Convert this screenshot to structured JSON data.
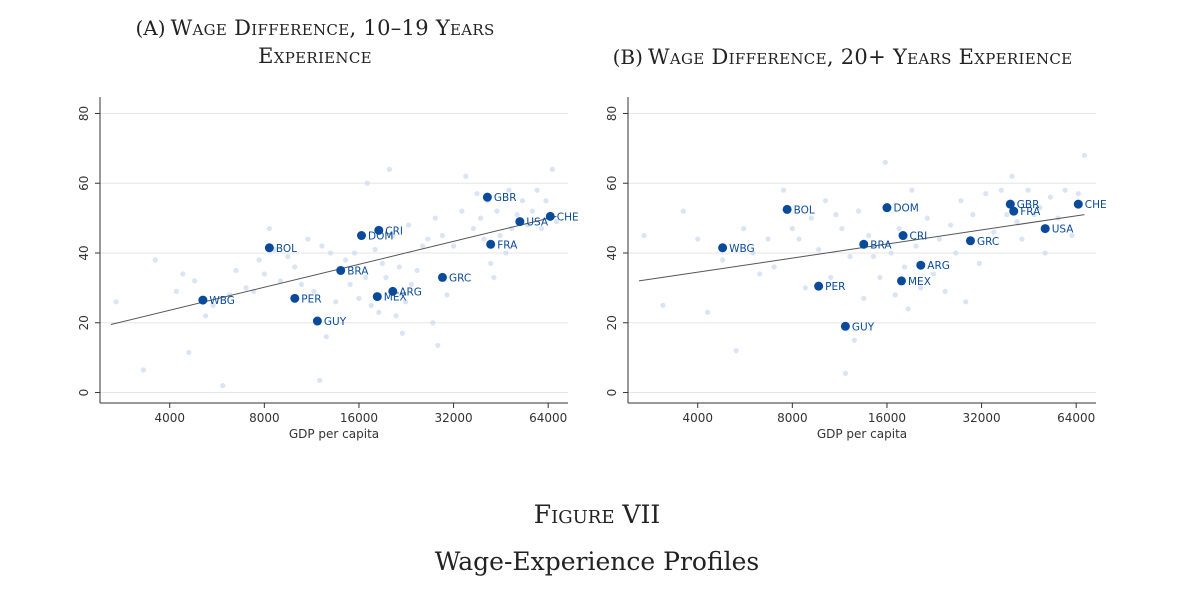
{
  "panels": [
    {
      "tag": "(A)",
      "title_line1": "Wage Difference, 10–19 Years",
      "title_line2": "Experience"
    },
    {
      "tag": "(B)",
      "title_line1": "Wage Difference, 20+ Years Experience",
      "title_line2": ""
    }
  ],
  "figure": {
    "number": "Figure VII",
    "caption": "Wage-Experience Profiles"
  },
  "colors": {
    "point": "#0a4a9a",
    "background_point": "#c9d9ef",
    "fit_line": "#555555",
    "grid": "#e6e6e6",
    "axis": "#333333"
  },
  "chart_data": [
    {
      "type": "scatter",
      "title": "Wage Difference, 10–19 Years Experience",
      "xlabel": "GDP per capita",
      "ylabel": "",
      "x_scale": "log",
      "x_ticks": [
        4000,
        8000,
        16000,
        32000,
        64000
      ],
      "x_tick_labels": [
        "4000",
        "8000",
        "16000",
        "32000",
        "64000"
      ],
      "y_ticks": [
        0,
        20,
        40,
        60,
        80
      ],
      "ylim": [
        0,
        80
      ],
      "grid": true,
      "fit_line": [
        {
          "x": 2600,
          "y": 19.5
        },
        {
          "x": 68000,
          "y": 50.5
        }
      ],
      "labeled_points": [
        {
          "label": "WBG",
          "x": 5100,
          "y": 26.5
        },
        {
          "label": "BOL",
          "x": 8300,
          "y": 41.5
        },
        {
          "label": "PER",
          "x": 10000,
          "y": 27
        },
        {
          "label": "GUY",
          "x": 11800,
          "y": 20.5
        },
        {
          "label": "BRA",
          "x": 14000,
          "y": 35
        },
        {
          "label": "DOM",
          "x": 16300,
          "y": 45
        },
        {
          "label": "CRI",
          "x": 18500,
          "y": 46.5
        },
        {
          "label": "MEX",
          "x": 18300,
          "y": 27.5
        },
        {
          "label": "ARG",
          "x": 20500,
          "y": 29
        },
        {
          "label": "GRC",
          "x": 29500,
          "y": 33
        },
        {
          "label": "GBR",
          "x": 41000,
          "y": 56
        },
        {
          "label": "FRA",
          "x": 42000,
          "y": 42.5
        },
        {
          "label": "USA",
          "x": 52000,
          "y": 49
        },
        {
          "label": "CHE",
          "x": 65000,
          "y": 50.5
        }
      ],
      "background_points": [
        [
          2700,
          26
        ],
        [
          3300,
          6.5
        ],
        [
          3600,
          38
        ],
        [
          4200,
          29
        ],
        [
          4400,
          34
        ],
        [
          4600,
          11.5
        ],
        [
          4800,
          32
        ],
        [
          5200,
          22
        ],
        [
          5500,
          25
        ],
        [
          5900,
          2
        ],
        [
          6200,
          28
        ],
        [
          6500,
          35
        ],
        [
          7000,
          30
        ],
        [
          7400,
          29
        ],
        [
          7700,
          38
        ],
        [
          8000,
          34
        ],
        [
          8300,
          47
        ],
        [
          8600,
          41
        ],
        [
          9000,
          32
        ],
        [
          9500,
          39
        ],
        [
          10000,
          36
        ],
        [
          10500,
          31
        ],
        [
          11000,
          44
        ],
        [
          11500,
          29
        ],
        [
          12000,
          3.5
        ],
        [
          12200,
          42
        ],
        [
          12600,
          16
        ],
        [
          13000,
          40
        ],
        [
          13500,
          26
        ],
        [
          14500,
          38
        ],
        [
          15000,
          31
        ],
        [
          15500,
          40
        ],
        [
          16000,
          27
        ],
        [
          16800,
          33
        ],
        [
          17000,
          60
        ],
        [
          17500,
          25
        ],
        [
          18000,
          41
        ],
        [
          18500,
          23
        ],
        [
          19000,
          37
        ],
        [
          19500,
          33
        ],
        [
          20000,
          64
        ],
        [
          20500,
          45
        ],
        [
          21000,
          22
        ],
        [
          21500,
          36
        ],
        [
          22000,
          17
        ],
        [
          22500,
          26
        ],
        [
          23000,
          48
        ],
        [
          23500,
          31
        ],
        [
          24500,
          35
        ],
        [
          25500,
          42
        ],
        [
          26500,
          44
        ],
        [
          27500,
          20
        ],
        [
          28000,
          50
        ],
        [
          28500,
          13.5
        ],
        [
          29500,
          45
        ],
        [
          30500,
          28
        ],
        [
          32000,
          42
        ],
        [
          34000,
          52
        ],
        [
          35000,
          62
        ],
        [
          37000,
          47
        ],
        [
          38000,
          57
        ],
        [
          39000,
          50
        ],
        [
          40000,
          44
        ],
        [
          41000,
          55
        ],
        [
          42000,
          37
        ],
        [
          43000,
          33
        ],
        [
          44000,
          52
        ],
        [
          45000,
          45
        ],
        [
          47000,
          40
        ],
        [
          48000,
          58
        ],
        [
          49000,
          47
        ],
        [
          51000,
          51
        ],
        [
          53000,
          55
        ],
        [
          55000,
          48
        ],
        [
          57000,
          52
        ],
        [
          59000,
          58
        ],
        [
          61000,
          47
        ],
        [
          63000,
          55
        ],
        [
          66000,
          64
        ],
        [
          68000,
          49
        ]
      ]
    },
    {
      "type": "scatter",
      "title": "Wage Difference, 20+ Years Experience",
      "xlabel": "GDP per capita",
      "ylabel": "",
      "x_scale": "log",
      "x_ticks": [
        4000,
        8000,
        16000,
        32000,
        64000
      ],
      "x_tick_labels": [
        "4000",
        "8000",
        "16000",
        "32000",
        "64000"
      ],
      "y_ticks": [
        0,
        20,
        40,
        60,
        80
      ],
      "ylim": [
        0,
        80
      ],
      "grid": true,
      "fit_line": [
        {
          "x": 2600,
          "y": 32
        },
        {
          "x": 68000,
          "y": 51
        }
      ],
      "labeled_points": [
        {
          "label": "WBG",
          "x": 4800,
          "y": 41.5
        },
        {
          "label": "BOL",
          "x": 7700,
          "y": 52.5
        },
        {
          "label": "PER",
          "x": 9700,
          "y": 30.5
        },
        {
          "label": "GUY",
          "x": 11800,
          "y": 19
        },
        {
          "label": "BRA",
          "x": 13500,
          "y": 42.5
        },
        {
          "label": "DOM",
          "x": 16000,
          "y": 53
        },
        {
          "label": "CRI",
          "x": 18000,
          "y": 45
        },
        {
          "label": "MEX",
          "x": 17800,
          "y": 32
        },
        {
          "label": "ARG",
          "x": 20500,
          "y": 36.5
        },
        {
          "label": "GRC",
          "x": 29500,
          "y": 43.5
        },
        {
          "label": "GBR",
          "x": 39500,
          "y": 54
        },
        {
          "label": "FRA",
          "x": 40500,
          "y": 52
        },
        {
          "label": "USA",
          "x": 51000,
          "y": 47
        },
        {
          "label": "CHE",
          "x": 65000,
          "y": 54
        }
      ],
      "background_points": [
        [
          2700,
          45
        ],
        [
          3100,
          25
        ],
        [
          3600,
          52
        ],
        [
          4000,
          44
        ],
        [
          4300,
          23
        ],
        [
          4800,
          38
        ],
        [
          5300,
          12
        ],
        [
          5600,
          47
        ],
        [
          6000,
          40
        ],
        [
          6300,
          34
        ],
        [
          6700,
          44
        ],
        [
          7000,
          36
        ],
        [
          7500,
          58
        ],
        [
          8000,
          47
        ],
        [
          8400,
          44
        ],
        [
          8800,
          30
        ],
        [
          9200,
          50
        ],
        [
          9700,
          41
        ],
        [
          10200,
          55
        ],
        [
          10600,
          33
        ],
        [
          11000,
          51
        ],
        [
          11500,
          47
        ],
        [
          11800,
          5.5
        ],
        [
          12200,
          39
        ],
        [
          12600,
          15
        ],
        [
          13000,
          52
        ],
        [
          13500,
          27
        ],
        [
          14000,
          45
        ],
        [
          14500,
          39
        ],
        [
          15200,
          33
        ],
        [
          15800,
          66
        ],
        [
          16500,
          40
        ],
        [
          17000,
          28
        ],
        [
          17500,
          47
        ],
        [
          18200,
          36
        ],
        [
          18700,
          24
        ],
        [
          19200,
          58
        ],
        [
          19800,
          42
        ],
        [
          20500,
          30
        ],
        [
          21500,
          50
        ],
        [
          22500,
          34
        ],
        [
          23500,
          44
        ],
        [
          24500,
          29
        ],
        [
          25500,
          48
        ],
        [
          26500,
          40
        ],
        [
          27500,
          55
        ],
        [
          28500,
          26
        ],
        [
          30000,
          51
        ],
        [
          31500,
          37
        ],
        [
          33000,
          57
        ],
        [
          35000,
          46
        ],
        [
          37000,
          58
        ],
        [
          38500,
          51
        ],
        [
          40000,
          62
        ],
        [
          41500,
          49
        ],
        [
          43000,
          44
        ],
        [
          45000,
          58
        ],
        [
          47000,
          51
        ],
        [
          49000,
          53
        ],
        [
          51000,
          40
        ],
        [
          53000,
          56
        ],
        [
          56000,
          50
        ],
        [
          59000,
          58
        ],
        [
          62000,
          45
        ],
        [
          65000,
          57
        ],
        [
          68000,
          68
        ]
      ]
    }
  ]
}
